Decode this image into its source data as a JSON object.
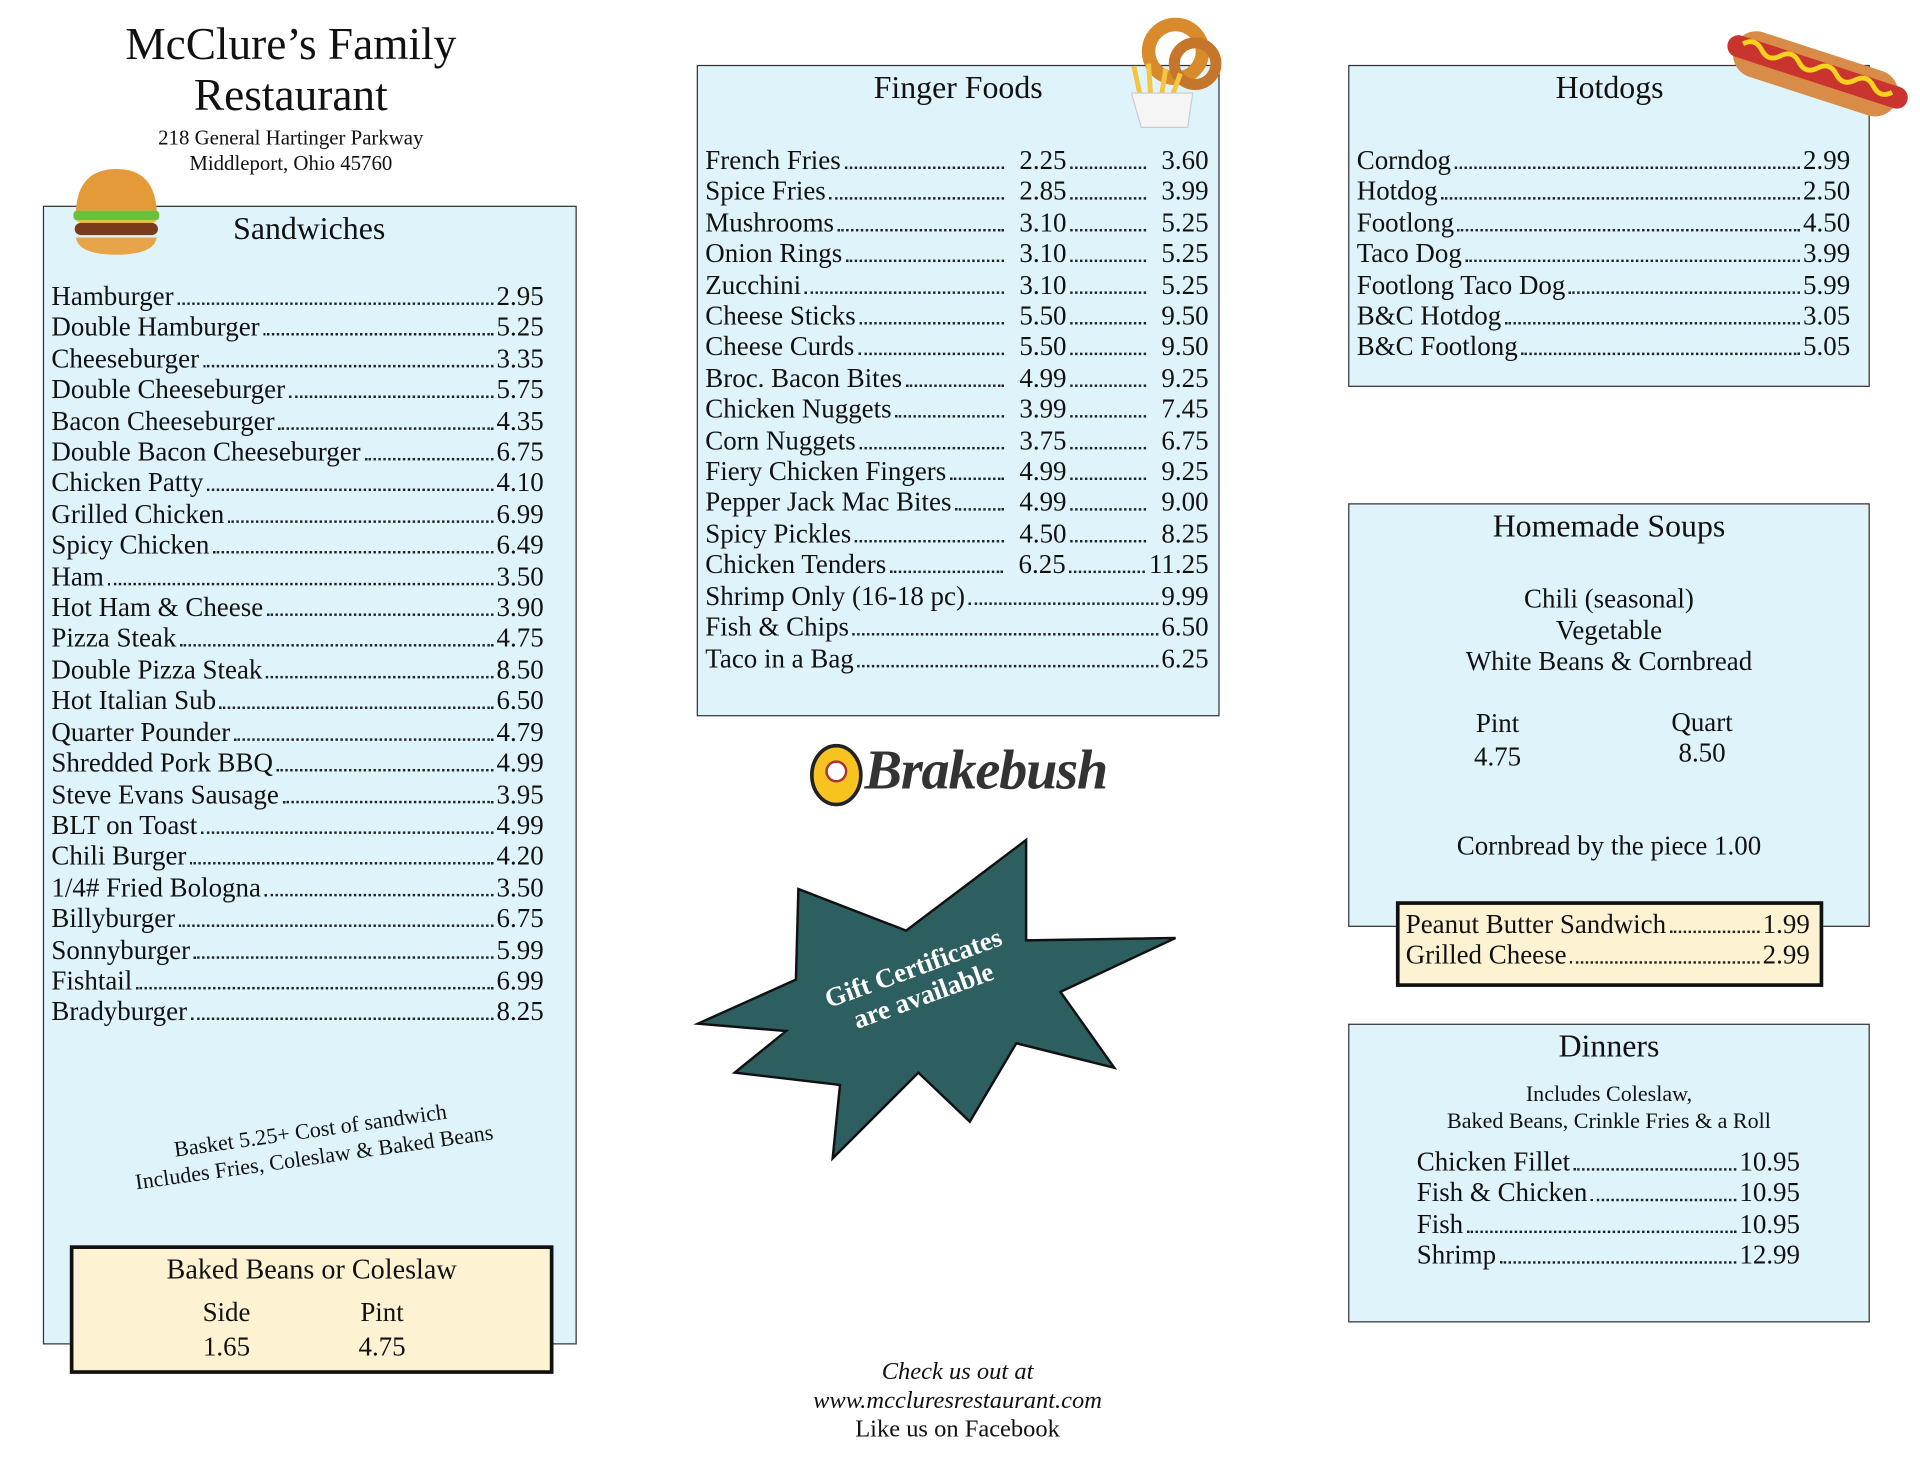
{
  "header": {
    "title": [
      "McClure’s Family",
      "Restaurant"
    ],
    "address": [
      "218 General Hartinger Parkway",
      "Middleport, Ohio 45760"
    ]
  },
  "sandwiches": {
    "title": "Sandwiches",
    "items": [
      {
        "name": "Hamburger",
        "price": "2.95"
      },
      {
        "name": "Double Hamburger",
        "price": "5.25"
      },
      {
        "name": "Cheeseburger",
        "price": "3.35"
      },
      {
        "name": "Double Cheeseburger",
        "price": "5.75"
      },
      {
        "name": "Bacon Cheeseburger",
        "price": "4.35"
      },
      {
        "name": "Double Bacon Cheeseburger",
        "price": "6.75"
      },
      {
        "name": "Chicken Patty",
        "price": "4.10"
      },
      {
        "name": "Grilled Chicken",
        "price": "6.99"
      },
      {
        "name": "Spicy Chicken",
        "price": "6.49"
      },
      {
        "name": "Ham",
        "price": "3.50"
      },
      {
        "name": "Hot Ham & Cheese",
        "price": "3.90"
      },
      {
        "name": "Pizza Steak",
        "price": "4.75"
      },
      {
        "name": "Double Pizza Steak",
        "price": "8.50"
      },
      {
        "name": "Hot Italian Sub",
        "price": "6.50"
      },
      {
        "name": "Quarter Pounder",
        "price": "4.79"
      },
      {
        "name": "Shredded Pork BBQ",
        "price": "4.99"
      },
      {
        "name": "Steve Evans Sausage",
        "price": "3.95"
      },
      {
        "name": "BLT on Toast",
        "price": "4.99"
      },
      {
        "name": "Chili Burger",
        "price": "4.20"
      },
      {
        "name": "1/4# Fried Bologna",
        "price": "3.50"
      },
      {
        "name": "Billyburger",
        "price": "6.75"
      },
      {
        "name": "Sonnyburger",
        "price": "5.99"
      },
      {
        "name": "Fishtail",
        "price": "6.99"
      },
      {
        "name": "Bradyburger",
        "price": "8.25"
      }
    ],
    "basket_note": [
      "Basket 5.25+ Cost of sandwich",
      "Includes Fries, Coleslaw & Baked Beans"
    ]
  },
  "sides": {
    "title": "Baked Beans or Coleslaw",
    "sizes": [
      {
        "label": "Side",
        "price": "1.65"
      },
      {
        "label": "Pint",
        "price": "4.75"
      }
    ]
  },
  "finger_foods": {
    "title": "Finger Foods",
    "items": [
      {
        "name": "French Fries",
        "prices": [
          "2.25",
          "3.60"
        ]
      },
      {
        "name": "Spice Fries",
        "prices": [
          "2.85",
          "3.99"
        ]
      },
      {
        "name": "Mushrooms",
        "prices": [
          "3.10",
          "5.25"
        ]
      },
      {
        "name": "Onion Rings",
        "prices": [
          "3.10",
          "5.25"
        ]
      },
      {
        "name": "Zucchini",
        "prices": [
          "3.10",
          "5.25"
        ]
      },
      {
        "name": "Cheese Sticks",
        "prices": [
          "5.50",
          "9.50"
        ]
      },
      {
        "name": "Cheese Curds",
        "prices": [
          "5.50",
          "9.50"
        ]
      },
      {
        "name": "Broc. Bacon Bites",
        "prices": [
          "4.99",
          "9.25"
        ]
      },
      {
        "name": "Chicken Nuggets",
        "prices": [
          "3.99",
          "7.45"
        ]
      },
      {
        "name": "Corn Nuggets",
        "prices": [
          "3.75",
          "6.75"
        ]
      },
      {
        "name": "Fiery Chicken Fingers",
        "prices": [
          "4.99",
          "9.25"
        ]
      },
      {
        "name": "Pepper Jack Mac Bites",
        "prices": [
          "4.99",
          "9.00"
        ]
      },
      {
        "name": "Spicy Pickles",
        "prices": [
          "4.50",
          "8.25"
        ]
      },
      {
        "name": "Chicken Tenders",
        "prices": [
          "6.25",
          "11.25"
        ]
      },
      {
        "name": "Shrimp Only (16-18 pc)",
        "prices": [
          "9.99"
        ]
      },
      {
        "name": "Fish & Chips",
        "prices": [
          "6.50"
        ]
      },
      {
        "name": "Taco in a Bag",
        "prices": [
          "6.25"
        ]
      }
    ]
  },
  "brand": "Brakebush",
  "promo": [
    "Gift Certificates",
    "are available"
  ],
  "footer": [
    "Check us out at",
    "www.mccluresrestaurant.com",
    "Like us on Facebook"
  ],
  "hotdogs": {
    "title": "Hotdogs",
    "items": [
      {
        "name": "Corndog",
        "price": "2.99"
      },
      {
        "name": "Hotdog",
        "price": "2.50"
      },
      {
        "name": "Footlong",
        "price": "4.50"
      },
      {
        "name": "Taco Dog",
        "price": "3.99"
      },
      {
        "name": "Footlong Taco Dog",
        "price": "5.99"
      },
      {
        "name": "B&C Hotdog",
        "price": "3.05"
      },
      {
        "name": "B&C Footlong",
        "price": "5.05"
      }
    ]
  },
  "soups": {
    "title": "Homemade Soups",
    "varieties": [
      "Chili (seasonal)",
      "Vegetable",
      "White Beans & Cornbread"
    ],
    "sizes": [
      {
        "label": "Pint",
        "price": "4.75"
      },
      {
        "label": "Quart",
        "price": "8.50"
      }
    ],
    "cornbread": "Cornbread by the piece 1.00"
  },
  "extras": {
    "items": [
      {
        "name": "Peanut Butter Sandwich",
        "price": "1.99"
      },
      {
        "name": "Grilled Cheese",
        "price": "2.99"
      }
    ]
  },
  "dinners": {
    "title": "Dinners",
    "note": [
      "Includes Coleslaw,",
      "Baked Beans, Crinkle Fries & a Roll"
    ],
    "items": [
      {
        "name": "Chicken Fillet",
        "price": "10.95"
      },
      {
        "name": "Fish & Chicken",
        "price": "10.95"
      },
      {
        "name": "Fish",
        "price": "10.95"
      },
      {
        "name": "Shrimp",
        "price": "12.99"
      }
    ]
  }
}
